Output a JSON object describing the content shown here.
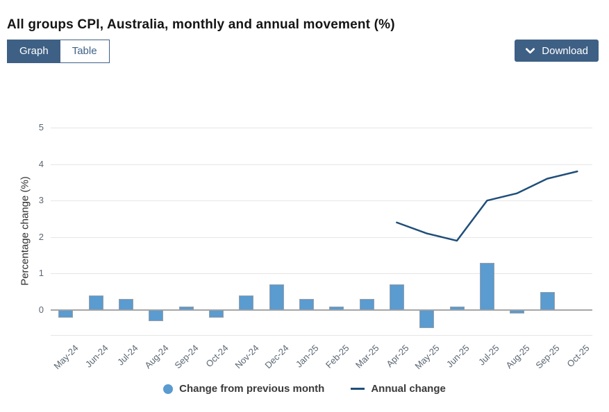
{
  "header": {
    "title": "All groups CPI, Australia, monthly and annual movement (%)"
  },
  "toolbar": {
    "graph_label": "Graph",
    "table_label": "Table",
    "download_label": "Download"
  },
  "colors": {
    "accent_blue": "#3E6085",
    "bar_fill": "#5A9BD0",
    "line_stroke": "#1F4E79",
    "zero_line": "#a6a6a6",
    "gridline": "#e6e6e6"
  },
  "chart_data": {
    "type": "bar",
    "subtype": "bar-and-line-combo",
    "categories": [
      "May-24",
      "Jun-24",
      "Jul-24",
      "Aug-24",
      "Sep-24",
      "Oct-24",
      "Nov-24",
      "Dec-24",
      "Jan-25",
      "Feb-25",
      "Mar-25",
      "Apr-25",
      "May-25",
      "Jun-25",
      "Jul-25",
      "Aug-25",
      "Sep-25",
      "Oct-25"
    ],
    "series": [
      {
        "name": "Change from previous month",
        "type": "bar",
        "color": "#5A9BD0",
        "values": [
          -0.2,
          0.4,
          0.3,
          -0.3,
          0.1,
          -0.2,
          0.4,
          0.7,
          0.3,
          0.1,
          0.3,
          0.7,
          -0.5,
          0.1,
          1.3,
          -0.1,
          0.5,
          0.0
        ]
      },
      {
        "name": "Annual change",
        "type": "line",
        "color": "#1F4E79",
        "values": [
          null,
          null,
          null,
          null,
          null,
          null,
          null,
          null,
          null,
          null,
          null,
          2.4,
          2.1,
          1.9,
          3.0,
          3.2,
          3.6,
          3.8
        ]
      }
    ],
    "title": "All groups CPI, Australia, monthly and annual movement (%)",
    "xlabel": "",
    "ylabel": "Percentage change (%)",
    "yticks": [
      0,
      1,
      2,
      3,
      4,
      5
    ],
    "ylim": [
      -0.68,
      5
    ],
    "grid": true,
    "legend_position": "bottom"
  }
}
